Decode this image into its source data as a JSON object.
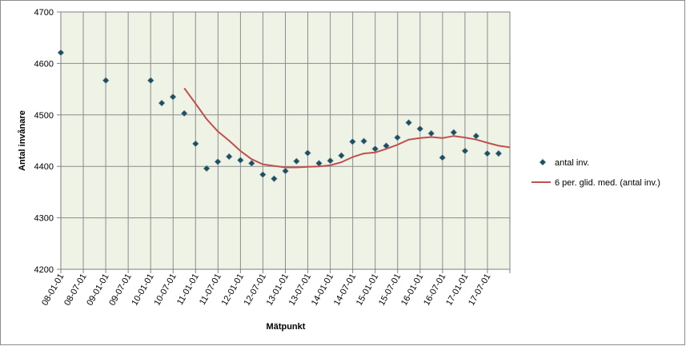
{
  "chart_data": {
    "type": "scatter",
    "title": "",
    "xlabel": "Mätpunkt",
    "ylabel": "Antal invånare",
    "ylim": [
      4200,
      4700
    ],
    "y_ticks": [
      "4200",
      "4300",
      "4400",
      "4500",
      "4600",
      "4700"
    ],
    "x_tick_labels": [
      "08-01-01",
      "08-07-01",
      "09-01-01",
      "09-07-01",
      "10-01-01",
      "10-07-01",
      "11-01-01",
      "11-07-01",
      "12-01-01",
      "12-07-01",
      "13-01-01",
      "13-07-01",
      "14-01-01",
      "14-07-01",
      "15-01-01",
      "15-07-01",
      "16-01-01",
      "16-07-01",
      "17-01-01",
      "17-07-01"
    ],
    "x_range": [
      "2008-01-01",
      "2018-01-01"
    ],
    "grid": true,
    "legend_position": "right",
    "series": [
      {
        "name": "antal inv.",
        "kind": "scatter",
        "marker": "diamond",
        "color": "#1f4e5f",
        "x": [
          "2008-01-01",
          "2009-01-01",
          "2010-01-01",
          "2010-04-01",
          "2010-07-01",
          "2010-10-01",
          "2011-01-01",
          "2011-04-01",
          "2011-07-01",
          "2011-10-01",
          "2012-01-01",
          "2012-04-01",
          "2012-07-01",
          "2012-10-01",
          "2013-01-01",
          "2013-04-01",
          "2013-07-01",
          "2013-10-01",
          "2014-01-01",
          "2014-04-01",
          "2014-07-01",
          "2014-10-01",
          "2015-01-01",
          "2015-04-01",
          "2015-07-01",
          "2015-10-01",
          "2016-01-01",
          "2016-04-01",
          "2016-07-01",
          "2016-10-01",
          "2017-01-01",
          "2017-04-01",
          "2017-07-01",
          "2017-10-01"
        ],
        "values": [
          4621,
          4567,
          4567,
          4523,
          4535,
          4503,
          4444,
          4396,
          4409,
          4419,
          4412,
          4406,
          4384,
          4376,
          4391,
          4410,
          4426,
          4406,
          4411,
          4421,
          4448,
          4449,
          4434,
          4440,
          4456,
          4485,
          4473,
          4464,
          4417,
          4466,
          4430,
          4459,
          4425,
          4425
        ]
      },
      {
        "name": "6 per. glid. med. (antal inv.)",
        "kind": "line",
        "color": "#c0504d",
        "x": [
          "2010-10-01",
          "2011-01-01",
          "2011-04-01",
          "2011-07-01",
          "2011-10-01",
          "2012-01-01",
          "2012-04-01",
          "2012-07-01",
          "2012-10-01",
          "2013-01-01",
          "2013-04-01",
          "2013-07-01",
          "2013-10-01",
          "2014-01-01",
          "2014-04-01",
          "2014-07-01",
          "2014-10-01",
          "2015-01-01",
          "2015-04-01",
          "2015-07-01",
          "2015-10-01",
          "2016-01-01",
          "2016-04-01",
          "2016-07-01",
          "2016-10-01",
          "2017-01-01",
          "2017-04-01",
          "2017-07-01",
          "2017-10-01",
          "2018-01-01"
        ],
        "values": [
          4552,
          4522,
          4492,
          4468,
          4450,
          4430,
          4414,
          4404,
          4401,
          4398,
          4398,
          4399,
          4400,
          4402,
          4408,
          4418,
          4425,
          4427,
          4434,
          4442,
          4452,
          4455,
          4457,
          4455,
          4459,
          4456,
          4452,
          4446,
          4440,
          4437
        ]
      }
    ]
  }
}
